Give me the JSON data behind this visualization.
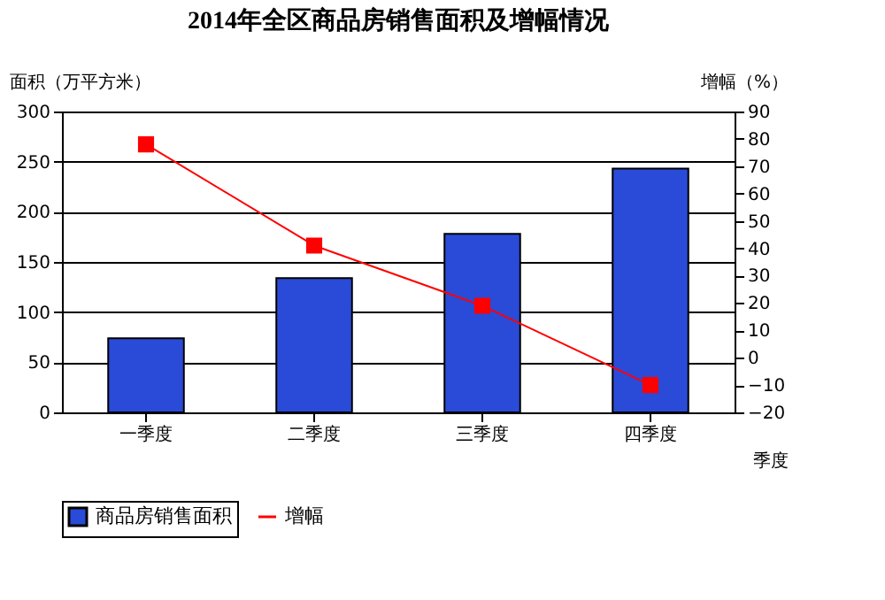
{
  "chart_data": {
    "type": "bar",
    "title": "2014年全区商品房销售面积及增幅情况",
    "categories": [
      "一季度",
      "二季度",
      "三季度",
      "四季度"
    ],
    "xlabel": "季度",
    "ylabel": "面积（万平方米）",
    "y2label": "增幅（%）",
    "series": [
      {
        "name": "商品房销售面积",
        "color": "#2a4bd7",
        "values": [
          74,
          134,
          178,
          243
        ]
      },
      {
        "name": "增幅",
        "type": "line",
        "axis": "y2",
        "color": "#ff0000",
        "marker": "square",
        "values": [
          78,
          41,
          19,
          -10
        ]
      }
    ],
    "ylim": [
      0,
      300
    ],
    "yticks": [
      0,
      50,
      100,
      150,
      200,
      250,
      300
    ],
    "y2lim": [
      -20,
      90
    ],
    "y2ticks": [
      -20,
      -10,
      0,
      10,
      20,
      30,
      40,
      50,
      60,
      70,
      80,
      90
    ],
    "grid": "y",
    "legend": "bottom"
  }
}
